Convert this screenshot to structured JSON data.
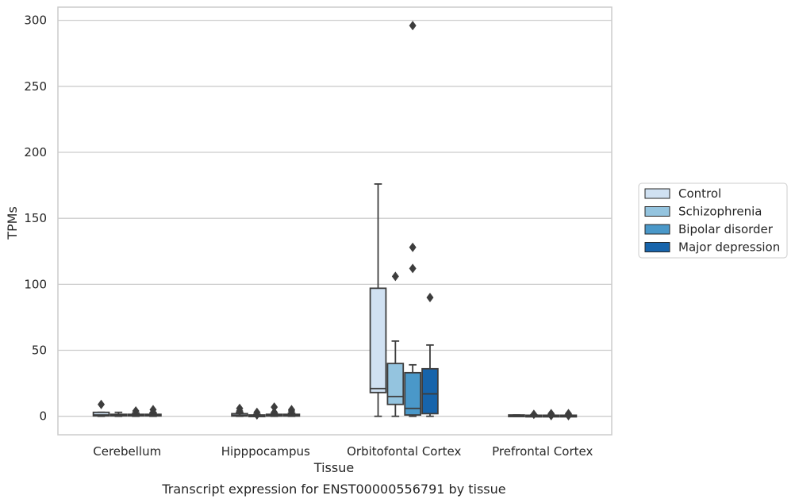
{
  "chart_data": {
    "type": "box",
    "title": "Transcript expression for ENST00000556791 by tissue",
    "xlabel": "Tissue",
    "ylabel": "TPMs",
    "ylim": [
      -14,
      310
    ],
    "yticks": [
      0,
      50,
      100,
      150,
      200,
      250,
      300
    ],
    "grid": true,
    "legend_position": "right",
    "categories": [
      "Cerebellum",
      "Hipppocampus",
      "Orbitofontal Cortex",
      "Prefrontal Cortex"
    ],
    "series": [
      {
        "name": "Control",
        "color": "#d0e1f2",
        "boxes": [
          {
            "whisker_low": 0,
            "q1": 0.3,
            "median": 1,
            "q3": 3,
            "whisker_high": 3,
            "outliers": [
              9
            ]
          },
          {
            "whisker_low": 0,
            "q1": 0.2,
            "median": 0.8,
            "q3": 2,
            "whisker_high": 3,
            "outliers": [
              4,
              6
            ]
          },
          {
            "whisker_low": 0,
            "q1": 18,
            "median": 21,
            "q3": 97,
            "whisker_high": 176,
            "outliers": []
          },
          {
            "whisker_low": 0,
            "q1": 0,
            "median": 0.3,
            "q3": 1,
            "whisker_high": 1,
            "outliers": []
          }
        ]
      },
      {
        "name": "Schizophrenia",
        "color": "#94c4df",
        "boxes": [
          {
            "whisker_low": 0,
            "q1": 0.3,
            "median": 1,
            "q3": 1.5,
            "whisker_high": 3,
            "outliers": []
          },
          {
            "whisker_low": 0,
            "q1": 0,
            "median": 0.5,
            "q3": 1,
            "whisker_high": 1.5,
            "outliers": [
              1,
              3
            ]
          },
          {
            "whisker_low": 0,
            "q1": 9,
            "median": 15,
            "q3": 40,
            "whisker_high": 57,
            "outliers": [
              106
            ]
          },
          {
            "whisker_low": 0,
            "q1": 0,
            "median": 0.2,
            "q3": 0.8,
            "whisker_high": 1,
            "outliers": [
              1.5
            ]
          }
        ]
      },
      {
        "name": "Bipolar disorder",
        "color": "#4a98c9",
        "boxes": [
          {
            "whisker_low": 0,
            "q1": 0.3,
            "median": 0.8,
            "q3": 1.5,
            "whisker_high": 2.5,
            "outliers": [
              4
            ]
          },
          {
            "whisker_low": 0,
            "q1": 0.2,
            "median": 0.6,
            "q3": 1.5,
            "whisker_high": 2,
            "outliers": [
              3,
              7
            ]
          },
          {
            "whisker_low": 0,
            "q1": 1,
            "median": 6,
            "q3": 33,
            "whisker_high": 39,
            "outliers": [
              112,
              128,
              296
            ]
          },
          {
            "whisker_low": 0,
            "q1": 0,
            "median": 0.2,
            "q3": 0.8,
            "whisker_high": 1,
            "outliers": [
              0.5,
              2
            ]
          }
        ]
      },
      {
        "name": "Major depression",
        "color": "#1764ab",
        "boxes": [
          {
            "whisker_low": 0,
            "q1": 0.3,
            "median": 0.8,
            "q3": 1.5,
            "whisker_high": 2.5,
            "outliers": [
              3,
              5
            ]
          },
          {
            "whisker_low": 0,
            "q1": 0.2,
            "median": 0.8,
            "q3": 1.5,
            "whisker_high": 2.5,
            "outliers": [
              4,
              5
            ]
          },
          {
            "whisker_low": 0,
            "q1": 2,
            "median": 17,
            "q3": 36,
            "whisker_high": 54,
            "outliers": [
              90
            ]
          },
          {
            "whisker_low": 0,
            "q1": 0,
            "median": 0.2,
            "q3": 0.8,
            "whisker_high": 1,
            "outliers": [
              0.5,
              2
            ]
          }
        ]
      }
    ]
  }
}
